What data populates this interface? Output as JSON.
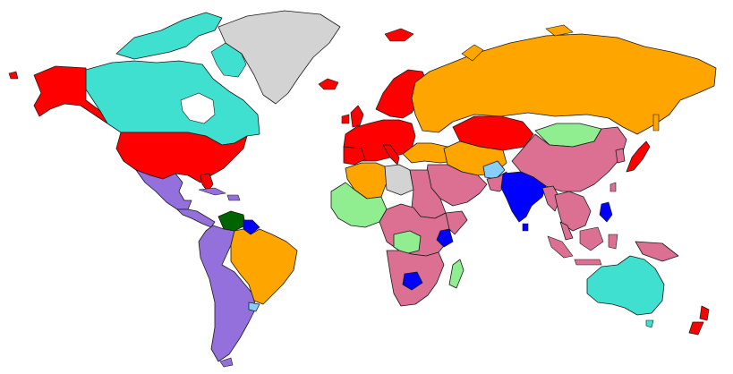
{
  "map": {
    "type": "choropleth-world",
    "colors": {
      "background": "#ffffff",
      "border": "#1a1a1a",
      "turquoise": "#40e0d0",
      "red": "#ff0000",
      "orange": "#ffa500",
      "pink": "#db7093",
      "purple": "#9370db",
      "lightgreen": "#90ee90",
      "blue": "#0000ff",
      "lightblue": "#87cefa",
      "darkgreen": "#006400",
      "gray": "#d3d3d3"
    },
    "regions": [
      {
        "name": "canada",
        "color": "turquoise"
      },
      {
        "name": "alaska",
        "color": "red"
      },
      {
        "name": "greenland",
        "color": "gray"
      },
      {
        "name": "usa",
        "color": "red"
      },
      {
        "name": "mexico",
        "color": "purple"
      },
      {
        "name": "central-america",
        "color": "purple"
      },
      {
        "name": "venezuela",
        "color": "darkgreen"
      },
      {
        "name": "guyana",
        "color": "blue"
      },
      {
        "name": "brazil",
        "color": "orange"
      },
      {
        "name": "andes",
        "color": "purple"
      },
      {
        "name": "uruguay",
        "color": "lightblue"
      },
      {
        "name": "europe-west",
        "color": "red"
      },
      {
        "name": "scandinavia",
        "color": "red"
      },
      {
        "name": "russia",
        "color": "orange"
      },
      {
        "name": "kazakhstan",
        "color": "red"
      },
      {
        "name": "mongolia",
        "color": "lightgreen"
      },
      {
        "name": "china",
        "color": "pink"
      },
      {
        "name": "india",
        "color": "blue"
      },
      {
        "name": "japan",
        "color": "red"
      },
      {
        "name": "southeast-asia",
        "color": "pink"
      },
      {
        "name": "middle-east",
        "color": "pink"
      },
      {
        "name": "saudi-arabia",
        "color": "pink"
      },
      {
        "name": "afghanistan",
        "color": "lightblue"
      },
      {
        "name": "algeria",
        "color": "orange"
      },
      {
        "name": "libya",
        "color": "gray"
      },
      {
        "name": "west-africa",
        "color": "lightgreen"
      },
      {
        "name": "central-africa",
        "color": "pink"
      },
      {
        "name": "kenya",
        "color": "blue"
      },
      {
        "name": "southern-africa",
        "color": "pink"
      },
      {
        "name": "zimbabwe",
        "color": "blue"
      },
      {
        "name": "madagascar",
        "color": "lightgreen"
      },
      {
        "name": "australia",
        "color": "turquoise"
      },
      {
        "name": "new-zealand",
        "color": "red"
      },
      {
        "name": "indonesia",
        "color": "pink"
      },
      {
        "name": "philippines",
        "color": "blue"
      }
    ]
  }
}
